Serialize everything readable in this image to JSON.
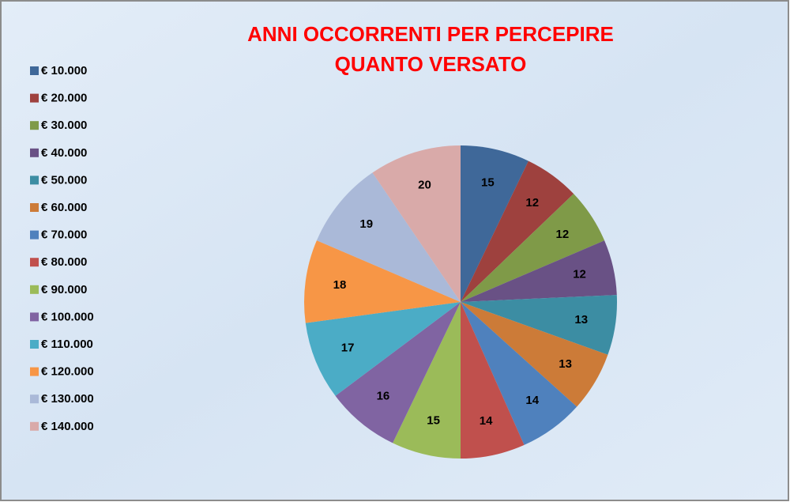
{
  "chart_data": {
    "type": "pie",
    "title": [
      "ANNI OCCORRENTI PER PERCEPIRE",
      "QUANTO VERSATO"
    ],
    "categories": [
      "€ 10.000",
      "€ 20.000",
      "€ 30.000",
      "€ 40.000",
      "€ 50.000",
      "€ 60.000",
      "€ 70.000",
      "€ 80.000",
      "€ 90.000",
      "€ 100.000",
      "€ 110.000",
      "€ 120.000",
      "€ 130.000",
      "€ 140.000"
    ],
    "values": [
      15,
      12,
      12,
      12,
      13,
      13,
      14,
      14,
      15,
      16,
      17,
      18,
      19,
      20
    ],
    "colors": [
      "#3f6899",
      "#9e413e",
      "#7f9a48",
      "#695185",
      "#3c8da3",
      "#cc7b38",
      "#4f81bd",
      "#c0504d",
      "#9bbb59",
      "#8064a2",
      "#4bacc6",
      "#f79646",
      "#aab9d8",
      "#d9aaa9"
    ],
    "legend": "left"
  }
}
